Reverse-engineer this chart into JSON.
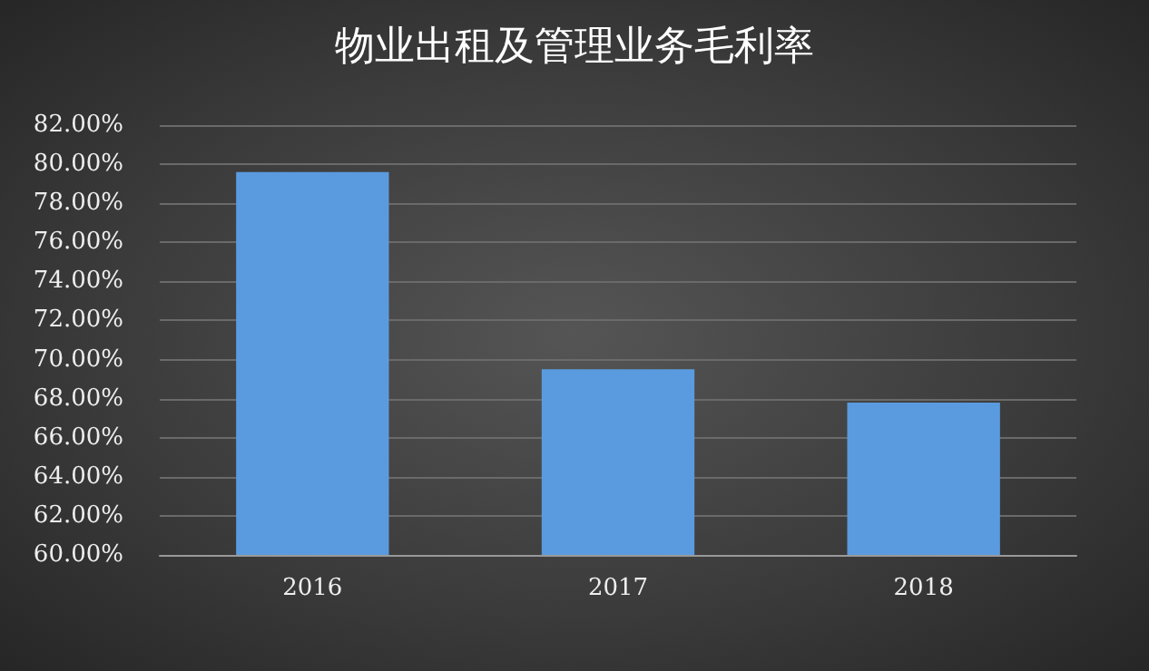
{
  "chart_data": {
    "type": "bar",
    "title": "物业出租及管理业务毛利率",
    "categories": [
      "2016",
      "2017",
      "2018"
    ],
    "values": [
      79.6,
      69.5,
      67.8
    ],
    "color": "#5a9be0",
    "ylim": [
      60,
      82
    ],
    "yticks": [
      {
        "value": 60,
        "label": "60.00%"
      },
      {
        "value": 62,
        "label": "62.00%"
      },
      {
        "value": 64,
        "label": "64.00%"
      },
      {
        "value": 66,
        "label": "66.00%"
      },
      {
        "value": 68,
        "label": "68.00%"
      },
      {
        "value": 70,
        "label": "70.00%"
      },
      {
        "value": 72,
        "label": "72.00%"
      },
      {
        "value": 74,
        "label": "74.00%"
      },
      {
        "value": 76,
        "label": "76.00%"
      },
      {
        "value": 78,
        "label": "78.00%"
      },
      {
        "value": 80,
        "label": "80.00%"
      },
      {
        "value": 82,
        "label": "82.00%"
      }
    ],
    "grid": "y"
  }
}
